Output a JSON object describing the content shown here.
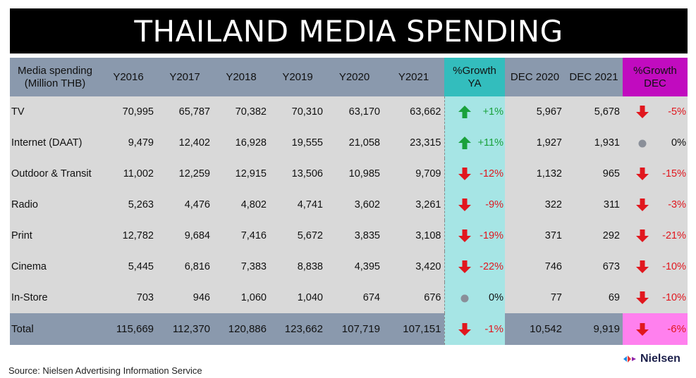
{
  "title": "THAILAND MEDIA SPENDING",
  "header": {
    "label_line1": "Media spending",
    "label_line2": "(Million THB)",
    "years": [
      "Y2016",
      "Y2017",
      "Y2018",
      "Y2019",
      "Y2020",
      "Y2021"
    ],
    "growth_ya_line1": "%Growth",
    "growth_ya_line2": "YA",
    "dec2020": "DEC 2020",
    "dec2021": "DEC 2021",
    "growth_dec_line1": "%Growth",
    "growth_dec_line2": "DEC"
  },
  "rows": [
    {
      "name": "TV",
      "vals": [
        "70,995",
        "65,787",
        "70,382",
        "70,310",
        "63,170",
        "63,662"
      ],
      "ya": "+1%",
      "ya_dir": "up",
      "dec2020": "5,967",
      "dec2021": "5,678",
      "dec": "-5%",
      "dec_dir": "down"
    },
    {
      "name": "Internet (DAAT)",
      "vals": [
        "9,479",
        "12,402",
        "16,928",
        "19,555",
        "21,058",
        "23,315"
      ],
      "ya": "+11%",
      "ya_dir": "up",
      "dec2020": "1,927",
      "dec2021": "1,931",
      "dec": "0%",
      "dec_dir": "flat"
    },
    {
      "name": "Outdoor & Transit",
      "vals": [
        "11,002",
        "12,259",
        "12,915",
        "13,506",
        "10,985",
        "9,709"
      ],
      "ya": "-12%",
      "ya_dir": "down",
      "dec2020": "1,132",
      "dec2021": "965",
      "dec": "-15%",
      "dec_dir": "down"
    },
    {
      "name": "Radio",
      "vals": [
        "5,263",
        "4,476",
        "4,802",
        "4,741",
        "3,602",
        "3,261"
      ],
      "ya": "-9%",
      "ya_dir": "down",
      "dec2020": "322",
      "dec2021": "311",
      "dec": "-3%",
      "dec_dir": "down"
    },
    {
      "name": "Print",
      "vals": [
        "12,782",
        "9,684",
        "7,416",
        "5,672",
        "3,835",
        "3,108"
      ],
      "ya": "-19%",
      "ya_dir": "down",
      "dec2020": "371",
      "dec2021": "292",
      "dec": "-21%",
      "dec_dir": "down"
    },
    {
      "name": "Cinema",
      "vals": [
        "5,445",
        "6,816",
        "7,383",
        "8,838",
        "4,395",
        "3,420"
      ],
      "ya": "-22%",
      "ya_dir": "down",
      "dec2020": "746",
      "dec2021": "673",
      "dec": "-10%",
      "dec_dir": "down"
    },
    {
      "name": "In-Store",
      "vals": [
        "703",
        "946",
        "1,060",
        "1,040",
        "674",
        "676"
      ],
      "ya": "0%",
      "ya_dir": "flat",
      "dec2020": "77",
      "dec2021": "69",
      "dec": "-10%",
      "dec_dir": "down"
    }
  ],
  "total": {
    "name": "Total",
    "vals": [
      "115,669",
      "112,370",
      "120,886",
      "123,662",
      "107,719",
      "107,151"
    ],
    "ya": "-1%",
    "ya_dir": "down",
    "dec2020": "10,542",
    "dec2021": "9,919",
    "dec": "-6%",
    "dec_dir": "down"
  },
  "source": "Source: Nielsen Advertising Information Service",
  "logo_text": "Nielsen",
  "colors": {
    "up": "#1aa13b",
    "down": "#e1171e",
    "flat": "#8a8f99"
  }
}
